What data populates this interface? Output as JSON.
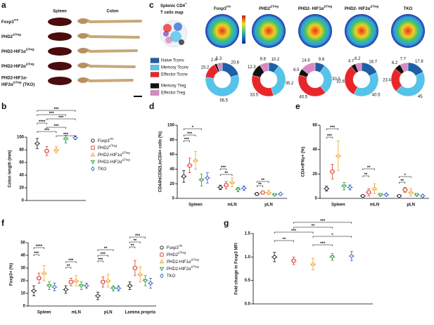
{
  "panel_letters": [
    "a",
    "b",
    "c",
    "d",
    "e",
    "f",
    "g"
  ],
  "genotypes": [
    {
      "base": "Foxp3",
      "sup": "cre",
      "color": "#111111",
      "marker": "circle"
    },
    {
      "base": "PHD2",
      "sup": "ΔTreg",
      "color": "#e03a2a",
      "marker": "square"
    },
    {
      "base": "PHD2-HIF1α",
      "sup": "ΔTreg",
      "color": "#f0a020",
      "marker": "triangle-up"
    },
    {
      "base": "PHD2-HIF2α",
      "sup": "ΔTreg",
      "color": "#2a9a3a",
      "marker": "triangle-down"
    },
    {
      "base": "TKO",
      "color": "#2f5fc8",
      "marker": "diamond"
    }
  ],
  "panel_a": {
    "columns": [
      "Spleen",
      "Colon"
    ],
    "rows": [
      {
        "base": "Foxp3",
        "sup": "cre"
      },
      {
        "base": "PHD2",
        "sup": "ΔTreg"
      },
      {
        "base": "PHD2-HIF1α",
        "sup": "ΔTreg"
      },
      {
        "base": "PHD2-HIF2α",
        "sup": "ΔTreg"
      },
      {
        "base": "PHD2-HIF1α-",
        "line2": "HIF2α",
        "sup": "ΔTreg",
        "tail": "(TKO)"
      }
    ]
  },
  "panel_c": {
    "title": {
      "base": "Splenic CD4",
      "sup": "+"
    },
    "subtitle": "T cells map",
    "maps": [
      {
        "base": "Foxp3",
        "sup": "cre"
      },
      {
        "base": "PHD2",
        "sup": "ΔTreg"
      },
      {
        "base": "PHD2- HIF1α",
        "sup": "ΔTreg"
      },
      {
        "base": "PHD2- HIF2α",
        "sup": "ΔTreg"
      },
      {
        "base": "TKO"
      }
    ],
    "legend": [
      {
        "name": "Naive Tconv",
        "color": "#1f5fa8"
      },
      {
        "name": "Memory Tconv",
        "color": "#56c3e8"
      },
      {
        "name": "Effector Tconv",
        "color": "#e8262a"
      },
      {
        "name": "Memory Treg",
        "color": "#111111"
      },
      {
        "name": "Effector Treg",
        "color": "#d88ac0"
      }
    ]
  },
  "chart_data": [
    {
      "type": "pie",
      "values": [
        20.6,
        56.5,
        15.2,
        2.4,
        5.3
      ]
    },
    {
      "type": "pie",
      "values": [
        10.2,
        35.2,
        33.5,
        12.3,
        8.8
      ]
    },
    {
      "type": "pie",
      "values": [
        9.8,
        30.5,
        40.5,
        6.5,
        14.6
      ]
    },
    {
      "type": "pie",
      "values": [
        18.7,
        40.5,
        32.6,
        4.7,
        6.2
      ]
    },
    {
      "type": "pie",
      "values": [
        17.8,
        45,
        23.4,
        6.2,
        7.7
      ]
    },
    {
      "type": "dotplot",
      "ylabel": "Colon length (mm)",
      "categories": [
        null
      ],
      "ylim": [
        0,
        100
      ],
      "yticks": [
        0,
        20,
        40,
        60,
        80,
        100
      ],
      "series": [
        {
          "values": [
            90
          ],
          "errors": [
            8
          ]
        },
        {
          "values": [
            78
          ],
          "errors": [
            7
          ]
        },
        {
          "values": [
            80
          ],
          "errors": [
            5
          ]
        },
        {
          "values": [
            97
          ],
          "errors": [
            6
          ]
        },
        {
          "values": [
            99
          ],
          "errors": [
            3
          ]
        }
      ],
      "annotations": [
        "***",
        "***",
        "***",
        "****",
        "***",
        "***",
        "***"
      ]
    },
    {
      "type": "dotplot",
      "ylabel": "CD44hiCD62LloCD4+ cells (%)",
      "categories": [
        "Spleen",
        "mLN",
        "pLN"
      ],
      "ylim": [
        0,
        100
      ],
      "yticks": [
        0,
        20,
        40,
        60,
        80,
        100
      ],
      "series": [
        {
          "values": [
            30,
            15,
            6
          ],
          "errors": [
            8,
            3,
            2
          ]
        },
        {
          "values": [
            45,
            18,
            8
          ],
          "errors": [
            10,
            5,
            2
          ]
        },
        {
          "values": [
            52,
            22,
            8
          ],
          "errors": [
            12,
            6,
            3
          ]
        },
        {
          "values": [
            25,
            12,
            5
          ],
          "errors": [
            8,
            3,
            1
          ]
        },
        {
          "values": [
            28,
            14,
            6
          ],
          "errors": [
            7,
            3,
            1
          ]
        }
      ],
      "annotations": [
        "*",
        "***",
        "***",
        "***",
        "**",
        "**",
        "**"
      ]
    },
    {
      "type": "dotplot",
      "ylabel": "CD4+IFNγ+ (%)",
      "categories": [
        "Spleen",
        "mLN",
        "pLN"
      ],
      "ylim": [
        0,
        60
      ],
      "yticks": [
        0,
        20,
        40,
        60
      ],
      "series": [
        {
          "values": [
            8,
            2,
            2
          ],
          "errors": [
            2,
            1,
            1
          ]
        },
        {
          "values": [
            22,
            5,
            7
          ],
          "errors": [
            6,
            3,
            2
          ]
        },
        {
          "values": [
            35,
            8,
            5
          ],
          "errors": [
            12,
            4,
            3
          ]
        },
        {
          "values": [
            10,
            3,
            3
          ],
          "errors": [
            3,
            1,
            1
          ]
        },
        {
          "values": [
            9,
            3,
            2
          ],
          "errors": [
            2,
            1,
            1
          ]
        }
      ],
      "annotations": [
        "***",
        "***",
        "**",
        "**",
        "*",
        "**"
      ]
    },
    {
      "type": "dotplot",
      "ylabel": "Foxp3+ (%)",
      "categories": [
        "Spleen",
        "mLN",
        "pLN",
        "Lamina propria"
      ],
      "ylim": [
        0,
        50
      ],
      "yticks": [
        0,
        10,
        20,
        30,
        40,
        50
      ],
      "series": [
        {
          "values": [
            12,
            13,
            8,
            16
          ],
          "errors": [
            4,
            3,
            3,
            3
          ]
        },
        {
          "values": [
            22,
            19,
            19,
            30
          ],
          "errors": [
            4,
            3,
            4,
            6
          ]
        },
        {
          "values": [
            26,
            20,
            20,
            25
          ],
          "errors": [
            6,
            4,
            5,
            6
          ]
        },
        {
          "values": [
            16,
            16,
            14,
            20
          ],
          "errors": [
            3,
            3,
            2,
            4
          ]
        },
        {
          "values": [
            15,
            16,
            14,
            18
          ],
          "errors": [
            3,
            2,
            2,
            4
          ]
        }
      ],
      "annotations": [
        "****",
        "***",
        "***",
        "**",
        "**",
        "***",
        "***",
        "***",
        "**",
        "**"
      ]
    },
    {
      "type": "dotplot",
      "ylabel": "Fold change in Foxp3 MFI",
      "categories": [
        null
      ],
      "ylim": [
        0,
        1.5
      ],
      "yticks": [
        {
          "value": 0,
          "label": "0.0"
        },
        0.5,
        {
          "value": 1,
          "label": "1.0"
        },
        1.5
      ],
      "series": [
        {
          "values": [
            1.0
          ],
          "errors": [
            0.1
          ]
        },
        {
          "values": [
            0.92
          ],
          "errors": [
            0.08
          ]
        },
        {
          "values": [
            0.85
          ],
          "errors": [
            0.12
          ]
        },
        {
          "values": [
            1.0
          ],
          "errors": [
            0.07
          ]
        },
        {
          "values": [
            1.02
          ],
          "errors": [
            0.1
          ]
        }
      ],
      "annotations": [
        "***",
        "**",
        "***",
        "*",
        "**",
        "***"
      ]
    }
  ]
}
